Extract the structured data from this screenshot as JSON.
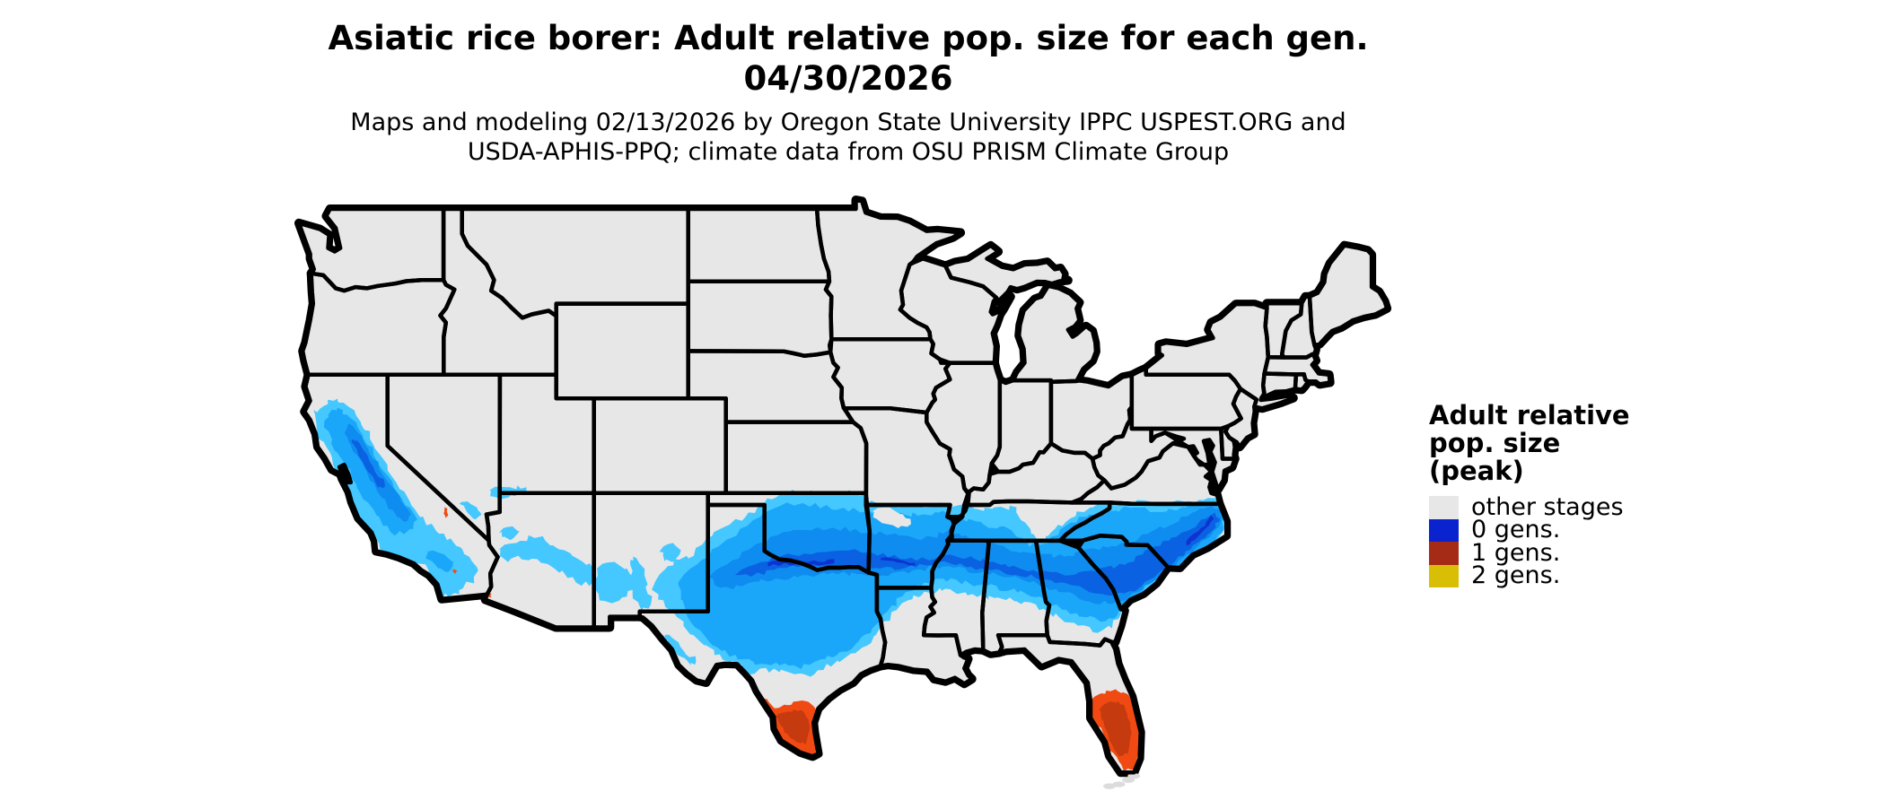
{
  "title": {
    "line1": "Asiatic rice borer: Adult relative pop. size for each gen.",
    "line2": "04/30/2026"
  },
  "subtitle": {
    "line1": "Maps and modeling 02/13/2026 by Oregon State University IPPC USPEST.ORG and",
    "line2": "USDA-APHIS-PPQ; climate data from OSU PRISM Climate Group"
  },
  "legend": {
    "title_lines": [
      "Adult relative",
      "pop. size",
      "(peak)"
    ],
    "items": [
      {
        "label": "other stages",
        "color": "#E7E7E7"
      },
      {
        "label": "0 gens.",
        "color": "#0A23CE"
      },
      {
        "label": "1 gens.",
        "color": "#A62B16"
      },
      {
        "label": "2 gens.",
        "color": "#D9BE06"
      }
    ]
  },
  "map": {
    "background": "#FFFFFF",
    "land_color": "#E7E7E7",
    "border_color": "#000000",
    "blue_shades": [
      "#44C8FF",
      "#1BA7F9",
      "#0E8CEF",
      "#0A62E2",
      "#0D33D2"
    ],
    "orange_shades": [
      "#F04A12",
      "#C63A10"
    ],
    "keys_color": "#DCDCDC"
  },
  "chart_data": {
    "type": "choropleth_map",
    "title": "Asiatic rice borer: Adult relative pop. size for each gen.",
    "date": "04/30/2026",
    "legend_title": "Adult relative pop. size (peak)",
    "classes": [
      {
        "label": "other stages",
        "color": "#E7E7E7"
      },
      {
        "label": "0 gens.",
        "color": "#0A23CE"
      },
      {
        "label": "1 gens.",
        "color": "#A62B16"
      },
      {
        "label": "2 gens.",
        "color": "#D9BE06"
      }
    ],
    "observations": [
      {
        "region": "Band across the southern US from eastern New Mexico / Texas / Oklahoma through Arkansas, the Tennessee valley, northern MS-AL, Georgia and the Carolinas to SE Virginia",
        "value": "0 gens. (blue gradient, darkest along the Red River valley and coastal North Carolina)"
      },
      {
        "region": "California Central Valley and coast ranges; scattered highlands of Arizona, New Mexico, southern Nevada and west Texas",
        "value": "0 gens. (blue gradient)"
      },
      {
        "region": "South Texas (lower Rio Grande valley)",
        "value": "1 gens. (orange-red gradient)"
      },
      {
        "region": "Central and southern Florida peninsula",
        "value": "1 gens. (orange-red gradient)"
      },
      {
        "region": "Small spots near Death Valley CA and Yuma AZ",
        "value": "1 gens."
      },
      {
        "region": "Rest of the contiguous US",
        "value": "other stages (gray)"
      }
    ]
  }
}
